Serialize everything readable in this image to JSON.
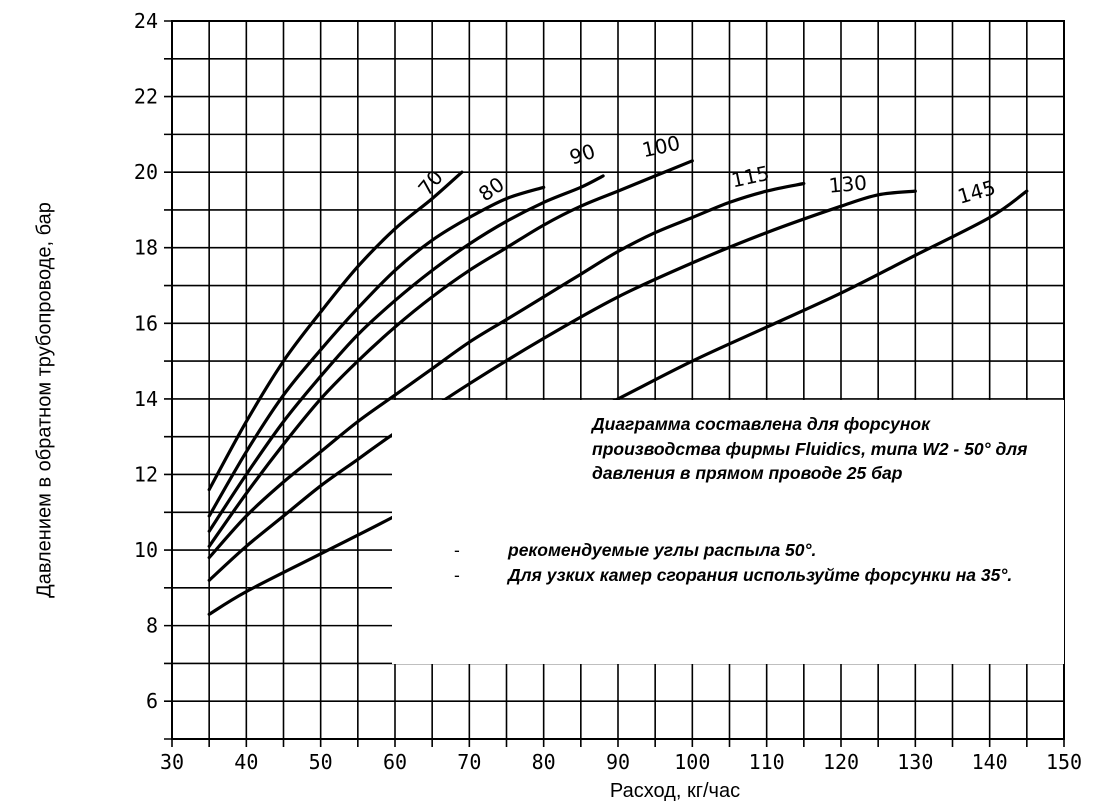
{
  "chart_data": {
    "type": "line",
    "xlabel": "Расход, кг/час",
    "ylabel": "Давлением в обратном трубопроводе, бар",
    "xlim": [
      30,
      150
    ],
    "ylim": [
      5,
      24
    ],
    "x_ticks": [
      30,
      40,
      50,
      60,
      70,
      80,
      90,
      100,
      110,
      120,
      130,
      140,
      150
    ],
    "y_ticks": [
      6,
      8,
      10,
      12,
      14,
      16,
      18,
      20,
      22,
      24
    ],
    "grid": true,
    "series": [
      {
        "name": "70",
        "points": [
          [
            35,
            11.6
          ],
          [
            40,
            13.4
          ],
          [
            45,
            15.0
          ],
          [
            50,
            16.3
          ],
          [
            55,
            17.5
          ],
          [
            60,
            18.5
          ],
          [
            65,
            19.3
          ],
          [
            69,
            20.0
          ]
        ]
      },
      {
        "name": "80",
        "points": [
          [
            35,
            10.9
          ],
          [
            40,
            12.6
          ],
          [
            45,
            14.1
          ],
          [
            50,
            15.3
          ],
          [
            55,
            16.4
          ],
          [
            60,
            17.4
          ],
          [
            65,
            18.2
          ],
          [
            70,
            18.8
          ],
          [
            75,
            19.3
          ],
          [
            80,
            19.6
          ]
        ]
      },
      {
        "name": "90",
        "points": [
          [
            35,
            10.5
          ],
          [
            40,
            12.0
          ],
          [
            45,
            13.4
          ],
          [
            50,
            14.6
          ],
          [
            55,
            15.7
          ],
          [
            60,
            16.6
          ],
          [
            65,
            17.4
          ],
          [
            70,
            18.1
          ],
          [
            75,
            18.7
          ],
          [
            80,
            19.2
          ],
          [
            85,
            19.6
          ],
          [
            88,
            19.9
          ]
        ]
      },
      {
        "name": "100",
        "points": [
          [
            35,
            10.1
          ],
          [
            40,
            11.5
          ],
          [
            45,
            12.8
          ],
          [
            50,
            14.0
          ],
          [
            55,
            15.0
          ],
          [
            60,
            15.9
          ],
          [
            65,
            16.7
          ],
          [
            70,
            17.4
          ],
          [
            75,
            18.0
          ],
          [
            80,
            18.6
          ],
          [
            85,
            19.1
          ],
          [
            90,
            19.5
          ],
          [
            95,
            19.9
          ],
          [
            100,
            20.3
          ]
        ]
      },
      {
        "name": "115",
        "points": [
          [
            35,
            9.8
          ],
          [
            40,
            10.9
          ],
          [
            45,
            11.8
          ],
          [
            50,
            12.6
          ],
          [
            55,
            13.4
          ],
          [
            60,
            14.1
          ],
          [
            65,
            14.8
          ],
          [
            70,
            15.5
          ],
          [
            75,
            16.1
          ],
          [
            80,
            16.7
          ],
          [
            85,
            17.3
          ],
          [
            90,
            17.9
          ],
          [
            95,
            18.4
          ],
          [
            100,
            18.8
          ],
          [
            105,
            19.2
          ],
          [
            110,
            19.5
          ],
          [
            115,
            19.7
          ]
        ]
      },
      {
        "name": "130",
        "points": [
          [
            35,
            9.2
          ],
          [
            40,
            10.1
          ],
          [
            45,
            10.9
          ],
          [
            50,
            11.7
          ],
          [
            55,
            12.4
          ],
          [
            60,
            13.1
          ],
          [
            70,
            14.4
          ],
          [
            80,
            15.6
          ],
          [
            90,
            16.7
          ],
          [
            100,
            17.6
          ],
          [
            110,
            18.4
          ],
          [
            120,
            19.1
          ],
          [
            125,
            19.4
          ],
          [
            130,
            19.5
          ]
        ]
      },
      {
        "name": "145",
        "points": [
          [
            35,
            8.3
          ],
          [
            40,
            8.9
          ],
          [
            50,
            9.9
          ],
          [
            60,
            10.9
          ],
          [
            70,
            12.0
          ],
          [
            80,
            13.0
          ],
          [
            90,
            14.0
          ],
          [
            100,
            15.0
          ],
          [
            110,
            15.9
          ],
          [
            120,
            16.8
          ],
          [
            130,
            17.8
          ],
          [
            140,
            18.8
          ],
          [
            145,
            19.5
          ]
        ]
      }
    ]
  },
  "curve_labels": [
    {
      "text": "70",
      "x": 65.5,
      "y": 19.6,
      "angle": -50
    },
    {
      "text": "80",
      "x": 73.5,
      "y": 19.4,
      "angle": -35
    },
    {
      "text": "90",
      "x": 85.5,
      "y": 20.3,
      "angle": -18
    },
    {
      "text": "100",
      "x": 96,
      "y": 20.5,
      "angle": -12
    },
    {
      "text": "115",
      "x": 108,
      "y": 19.7,
      "angle": -12
    },
    {
      "text": "130",
      "x": 121,
      "y": 19.5,
      "angle": -5
    },
    {
      "text": "145",
      "x": 138.5,
      "y": 19.3,
      "angle": -16
    }
  ],
  "notes": {
    "title": "Диаграмма составлена для форсунок производства фирмы Fluidics, типа W2 - 50° для давления в прямом проводе 25 бар",
    "bullet": "-",
    "items": [
      "рекомендуемые углы распыла 50°.",
      "Для узких камер сгорания используйте форсунки на 35°."
    ]
  },
  "colors": {
    "line": "#000000",
    "grid": "#000000",
    "background": "#ffffff"
  }
}
